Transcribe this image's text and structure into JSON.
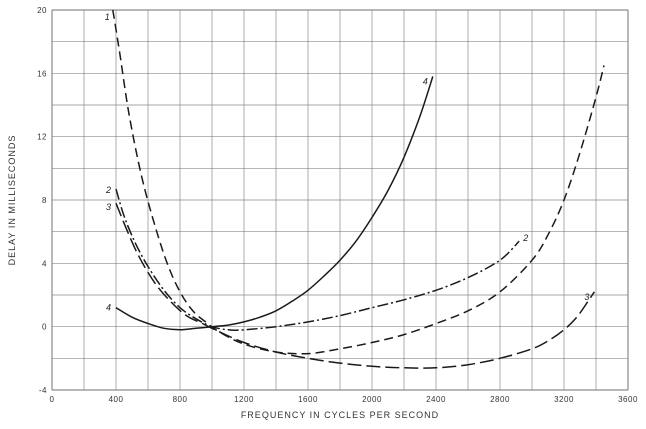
{
  "chart_data": {
    "type": "line",
    "title": "",
    "xlabel": "FREQUENCY IN CYCLES PER SECOND",
    "ylabel": "DELAY IN MILLISECONDS",
    "xlim": [
      0,
      3600
    ],
    "ylim": [
      -4,
      20
    ],
    "grid": true,
    "x_ticks": [
      "0",
      "400",
      "800",
      "1200",
      "1600",
      "2000",
      "2400",
      "2800",
      "3200",
      "3600"
    ],
    "y_ticks": [
      "-4",
      "0",
      "4",
      "8",
      "12",
      "16",
      "20"
    ],
    "series": [
      {
        "label": "1",
        "style": "dashed",
        "points": [
          [
            380,
            20
          ],
          [
            420,
            17.5
          ],
          [
            480,
            13.5
          ],
          [
            560,
            9.5
          ],
          [
            640,
            6.5
          ],
          [
            720,
            4
          ],
          [
            800,
            2.2
          ],
          [
            880,
            1
          ],
          [
            960,
            0.3
          ],
          [
            1040,
            -0.3
          ],
          [
            1200,
            -1.1
          ],
          [
            1400,
            -1.6
          ],
          [
            1600,
            -1.7
          ],
          [
            1800,
            -1.4
          ],
          [
            2000,
            -1.0
          ],
          [
            2200,
            -0.5
          ],
          [
            2400,
            0.2
          ],
          [
            2600,
            1.0
          ],
          [
            2800,
            2.2
          ],
          [
            3000,
            4.2
          ],
          [
            3100,
            5.8
          ],
          [
            3200,
            8
          ],
          [
            3300,
            11
          ],
          [
            3400,
            14.5
          ],
          [
            3450,
            16.5
          ]
        ]
      },
      {
        "label": "2",
        "style": "dash-dot",
        "points": [
          [
            400,
            8.7
          ],
          [
            450,
            7
          ],
          [
            520,
            5.3
          ],
          [
            600,
            3.8
          ],
          [
            700,
            2.3
          ],
          [
            800,
            1.2
          ],
          [
            900,
            0.5
          ],
          [
            1000,
            0
          ],
          [
            1100,
            -0.2
          ],
          [
            1200,
            -0.2
          ],
          [
            1400,
            0
          ],
          [
            1600,
            0.3
          ],
          [
            1800,
            0.7
          ],
          [
            2000,
            1.2
          ],
          [
            2200,
            1.7
          ],
          [
            2400,
            2.3
          ],
          [
            2600,
            3.1
          ],
          [
            2800,
            4.2
          ],
          [
            2920,
            5.4
          ]
        ]
      },
      {
        "label": "3",
        "style": "long-dash",
        "points": [
          [
            400,
            7.8
          ],
          [
            460,
            6.3
          ],
          [
            540,
            4.5
          ],
          [
            640,
            2.8
          ],
          [
            740,
            1.6
          ],
          [
            840,
            0.7
          ],
          [
            940,
            0.2
          ],
          [
            1040,
            -0.3
          ],
          [
            1200,
            -1
          ],
          [
            1400,
            -1.6
          ],
          [
            1600,
            -2
          ],
          [
            1800,
            -2.3
          ],
          [
            2000,
            -2.5
          ],
          [
            2200,
            -2.6
          ],
          [
            2400,
            -2.6
          ],
          [
            2600,
            -2.4
          ],
          [
            2800,
            -2
          ],
          [
            3000,
            -1.4
          ],
          [
            3100,
            -0.9
          ],
          [
            3200,
            -0.2
          ],
          [
            3280,
            0.6
          ],
          [
            3350,
            1.6
          ],
          [
            3390,
            2.2
          ]
        ]
      },
      {
        "label": "4",
        "style": "solid",
        "points": [
          [
            400,
            1.2
          ],
          [
            500,
            0.6
          ],
          [
            600,
            0.2
          ],
          [
            700,
            -0.1
          ],
          [
            800,
            -0.2
          ],
          [
            900,
            -0.1
          ],
          [
            1000,
            0
          ],
          [
            1100,
            0.1
          ],
          [
            1200,
            0.3
          ],
          [
            1300,
            0.6
          ],
          [
            1400,
            1
          ],
          [
            1500,
            1.6
          ],
          [
            1600,
            2.3
          ],
          [
            1700,
            3.2
          ],
          [
            1800,
            4.2
          ],
          [
            1900,
            5.4
          ],
          [
            2000,
            6.9
          ],
          [
            2100,
            8.6
          ],
          [
            2200,
            10.7
          ],
          [
            2300,
            13.3
          ],
          [
            2380,
            15.8
          ]
        ]
      }
    ]
  }
}
